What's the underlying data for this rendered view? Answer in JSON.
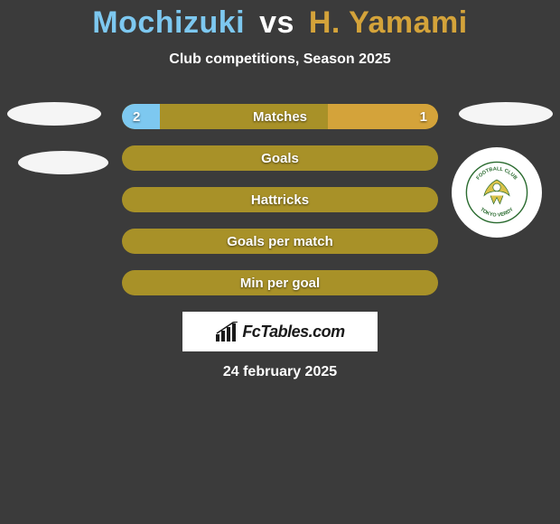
{
  "background_color": "#3b3b3b",
  "header": {
    "player1": "Mochizuki",
    "vs": "vs",
    "player2": "H. Yamami",
    "player1_color": "#7dc8f0",
    "vs_color": "#ffffff",
    "player2_color": "#d4a33a",
    "font_size": 34
  },
  "subtitle": {
    "text": "Club competitions, Season 2025",
    "color": "#ffffff",
    "font_size": 16
  },
  "badges": {
    "left1_color": "#f5f5f5",
    "left2_color": "#f5f5f5",
    "right1_color": "#f5f5f5",
    "crest_bg": "#ffffff",
    "crest_text_top": "FOOTBALL CLUB",
    "crest_text_bottom": "TOKYO VERDY",
    "crest_text_color": "#2a6b2f",
    "crest_eagle_color": "#d9c24a",
    "crest_inner_bg": "#ffffff"
  },
  "bars": {
    "track_color": "#a89128",
    "left_fill_color": "#7dc8f0",
    "right_fill_color": "#d4a33a",
    "label_color": "#ffffff",
    "label_font_size": 15,
    "value_font_size": 15,
    "rows": [
      {
        "label": "Matches",
        "left_val": "2",
        "right_val": "1",
        "left_pct": 12,
        "right_pct": 35
      },
      {
        "label": "Goals",
        "left_val": "",
        "right_val": "",
        "left_pct": 0,
        "right_pct": 0
      },
      {
        "label": "Hattricks",
        "left_val": "",
        "right_val": "",
        "left_pct": 0,
        "right_pct": 0
      },
      {
        "label": "Goals per match",
        "left_val": "",
        "right_val": "",
        "left_pct": 0,
        "right_pct": 0
      },
      {
        "label": "Min per goal",
        "left_val": "",
        "right_val": "",
        "left_pct": 0,
        "right_pct": 0
      }
    ]
  },
  "logo": {
    "bg": "#ffffff",
    "text": "FcTables.com",
    "text_color": "#1a1a1a",
    "chart_color": "#1a1a1a"
  },
  "date": {
    "text": "24 february 2025",
    "color": "#ffffff",
    "font_size": 16
  }
}
